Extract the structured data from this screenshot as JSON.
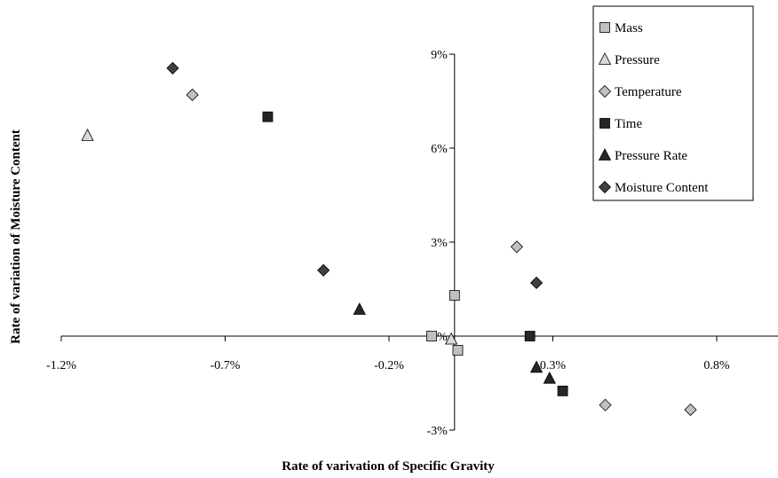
{
  "chart_data": {
    "type": "scatter",
    "xlabel": "Rate of varivation of Specific Gravity",
    "ylabel": "Rate of variation of Moisture Content",
    "xlim": [
      -1.2,
      1.05
    ],
    "ylim": [
      -3.0,
      9.0
    ],
    "x_ticks": [
      -1.2,
      -0.7,
      -0.2,
      0.3,
      0.8
    ],
    "x_tick_labels": [
      "-1.2%",
      "-0.7%",
      "-0.2%",
      "0.3%",
      "0.8%"
    ],
    "y_ticks": [
      -3,
      0,
      3,
      6,
      9
    ],
    "y_tick_labels": [
      "-3%",
      "0%",
      "3%",
      "6%",
      "9%"
    ],
    "grid": false,
    "legend_position": "top-right",
    "series": [
      {
        "name": "Mass",
        "marker": "square",
        "fill": "#c0c0c0",
        "points": [
          [
            -0.07,
            0.0
          ],
          [
            0.0,
            1.3
          ],
          [
            0.01,
            -0.45
          ]
        ]
      },
      {
        "name": "Pressure",
        "marker": "triangle",
        "fill": "#d9d9d9",
        "points": [
          [
            -1.12,
            6.4
          ],
          [
            -0.01,
            -0.1
          ]
        ]
      },
      {
        "name": "Temperature",
        "marker": "diamond",
        "fill": "#c0c0c0",
        "points": [
          [
            -0.8,
            7.7
          ],
          [
            0.19,
            2.85
          ],
          [
            0.46,
            -2.2
          ],
          [
            0.72,
            -2.35
          ]
        ]
      },
      {
        "name": "Time",
        "marker": "square",
        "fill": "#262626",
        "points": [
          [
            -0.57,
            7.0
          ],
          [
            0.23,
            0.0
          ],
          [
            0.33,
            -1.75
          ]
        ]
      },
      {
        "name": "Pressure Rate",
        "marker": "triangle",
        "fill": "#262626",
        "points": [
          [
            -0.29,
            0.85
          ],
          [
            0.25,
            -1.0
          ],
          [
            0.29,
            -1.35
          ]
        ]
      },
      {
        "name": "Moisture Content",
        "marker": "diamond",
        "fill": "#404040",
        "points": [
          [
            -0.86,
            8.55
          ],
          [
            -0.4,
            2.1
          ],
          [
            0.25,
            1.7
          ]
        ]
      }
    ]
  }
}
